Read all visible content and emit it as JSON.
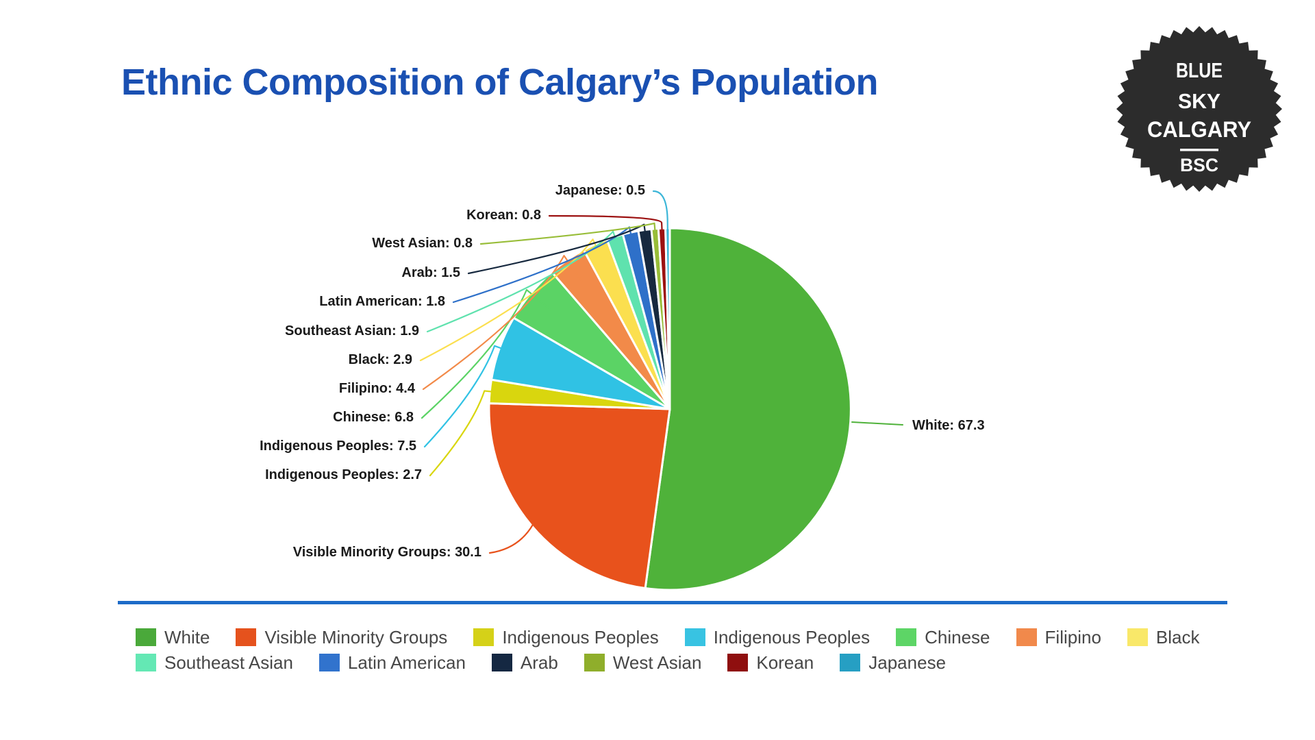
{
  "title": "Ethnic Composition of Calgary’s Population",
  "title_color": "#1a50b2",
  "divider_color": "#1c6bc8",
  "logo": {
    "line1": "BLUE",
    "line2": "SKY",
    "line3": "CALGARY",
    "acronym": "BSC",
    "bg_color": "#2c2c2c",
    "text_color": "#ffffff"
  },
  "chart_data": {
    "type": "pie",
    "title": "Ethnic Composition of Calgary's Population",
    "unit": "percent of population",
    "start_angle": "12 o'clock",
    "direction": "clockwise",
    "slices": [
      {
        "name": "White",
        "value": 67.3,
        "color": "#4fb23a",
        "label": "White: 67.3"
      },
      {
        "name": "Visible Minority Groups",
        "value": 30.1,
        "color": "#e8521c",
        "label": "Visible Minority Groups: 30.1"
      },
      {
        "name": "Indigenous Peoples",
        "value": 2.7,
        "color": "#d9d60e",
        "label": "Indigenous Peoples: 2.7"
      },
      {
        "name": "Indigenous Peoples",
        "value": 7.5,
        "color": "#30c2e4",
        "label": "Indigenous Peoples: 7.5"
      },
      {
        "name": "Chinese",
        "value": 6.8,
        "color": "#5bd365",
        "label": "Chinese: 6.8"
      },
      {
        "name": "Filipino",
        "value": 4.4,
        "color": "#f28a49",
        "label": "Filipino: 4.4"
      },
      {
        "name": "Black",
        "value": 2.9,
        "color": "#fbdf4f",
        "label": "Black: 2.9"
      },
      {
        "name": "Southeast Asian",
        "value": 1.9,
        "color": "#5fe2ae",
        "label": "Southeast Asian: 1.9"
      },
      {
        "name": "Latin American",
        "value": 1.8,
        "color": "#2e70c9",
        "label": "Latin American: 1.8"
      },
      {
        "name": "Arab",
        "value": 1.5,
        "color": "#17293f",
        "label": "Arab: 1.5"
      },
      {
        "name": "West Asian",
        "value": 0.8,
        "color": "#98bd38",
        "label": "West Asian: 0.8"
      },
      {
        "name": "Korean",
        "value": 0.8,
        "color": "#9c1111",
        "label": "Korean: 0.8"
      },
      {
        "name": "Japanese",
        "value": 0.5,
        "color": "#3cb6d8",
        "label": "Japanese: 0.5"
      }
    ],
    "legend_position": "bottom"
  },
  "legend": {
    "rows": [
      [
        {
          "label": "White",
          "color": "#4aa93a"
        },
        {
          "label": "Visible Minority Groups",
          "color": "#e5521d"
        },
        {
          "label": "Indigenous Peoples",
          "color": "#d5d118"
        },
        {
          "label": "Indigenous Peoples",
          "color": "#38c3e2"
        },
        {
          "label": "Chinese",
          "color": "#5dd566"
        },
        {
          "label": "Filipino",
          "color": "#f1894b"
        },
        {
          "label": "Black",
          "color": "#f9e869"
        }
      ],
      [
        {
          "label": "Southeast Asian",
          "color": "#64e8b4"
        },
        {
          "label": "Latin American",
          "color": "#3173cd"
        },
        {
          "label": "Arab",
          "color": "#152842"
        },
        {
          "label": "West Asian",
          "color": "#8fae2b"
        },
        {
          "label": "Korean",
          "color": "#8f0f0f"
        },
        {
          "label": "Japanese",
          "color": "#269fc3"
        }
      ]
    ]
  }
}
